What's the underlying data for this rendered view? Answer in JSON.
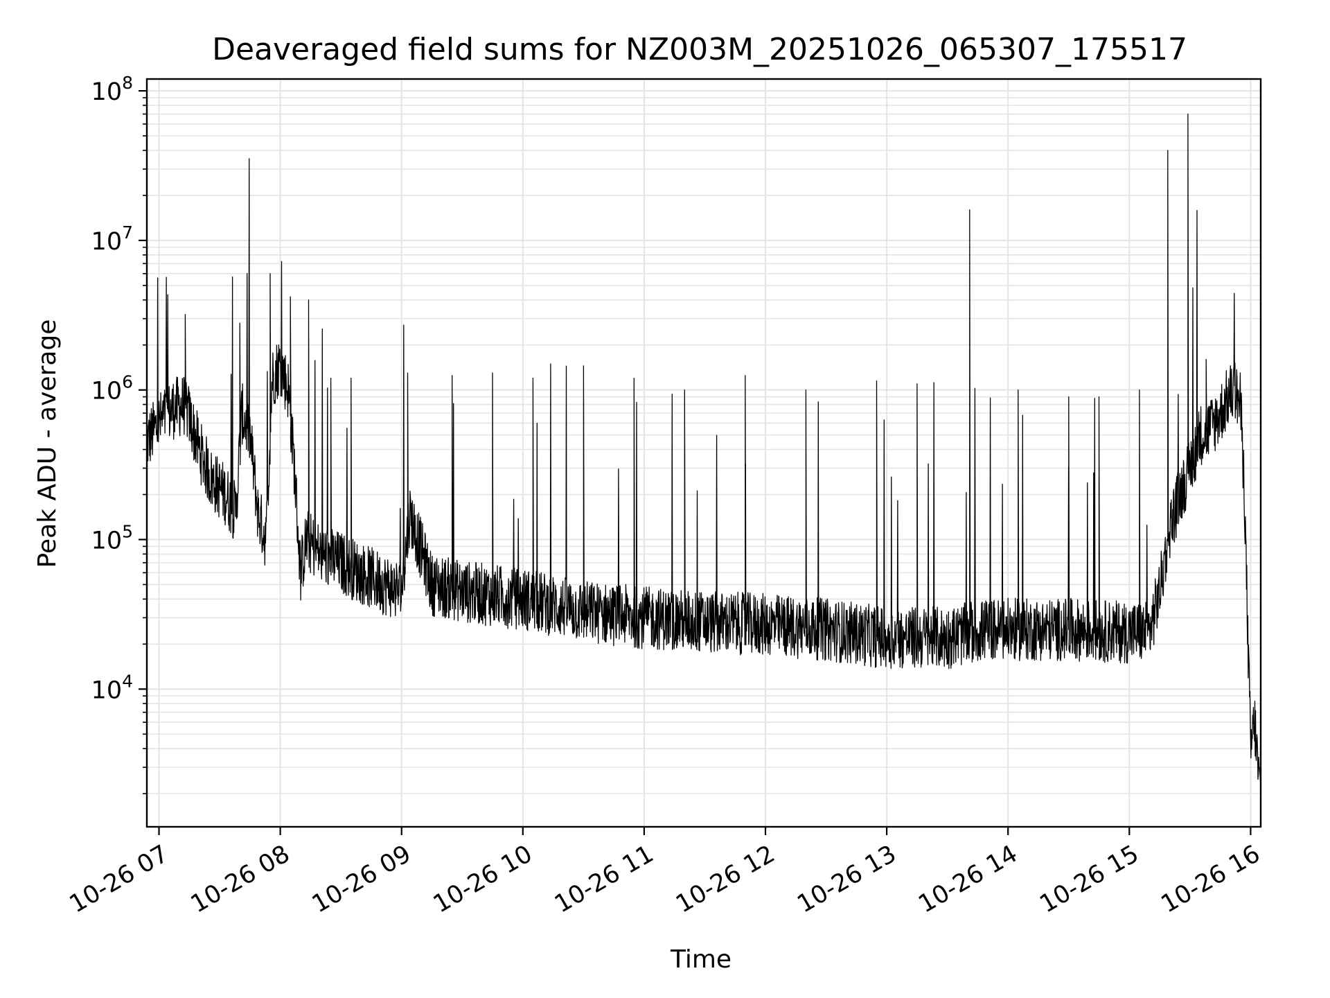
{
  "chart_data": {
    "type": "line",
    "title": "Deaveraged field sums for NZ003M_20251026_065307_175517",
    "xlabel": "Time",
    "ylabel": "Peak ADU - average",
    "x_scale": "time",
    "y_scale": "log",
    "xlim": [
      "2025-10-26 06:54",
      "2025-10-26 16:05"
    ],
    "ylim": [
      1200,
      120000000
    ],
    "grid": "both, major and minor",
    "legend": "none",
    "line_color": "#000000",
    "x_ticks": [
      {
        "value": "2025-10-26 07:00",
        "label": "10-26 07"
      },
      {
        "value": "2025-10-26 08:00",
        "label": "10-26 08"
      },
      {
        "value": "2025-10-26 09:00",
        "label": "10-26 09"
      },
      {
        "value": "2025-10-26 10:00",
        "label": "10-26 10"
      },
      {
        "value": "2025-10-26 11:00",
        "label": "10-26 11"
      },
      {
        "value": "2025-10-26 12:00",
        "label": "10-26 12"
      },
      {
        "value": "2025-10-26 13:00",
        "label": "10-26 13"
      },
      {
        "value": "2025-10-26 14:00",
        "label": "10-26 14"
      },
      {
        "value": "2025-10-26 15:00",
        "label": "10-26 15"
      },
      {
        "value": "2025-10-26 16:00",
        "label": "10-26 16"
      }
    ],
    "y_ticks": [
      {
        "value": 10000,
        "base": "10",
        "exp": "4"
      },
      {
        "value": 100000,
        "base": "10",
        "exp": "5"
      },
      {
        "value": 1000000,
        "base": "10",
        "exp": "6"
      },
      {
        "value": 10000000,
        "base": "10",
        "exp": "7"
      },
      {
        "value": 100000000,
        "base": "10",
        "exp": "8"
      }
    ],
    "series": [
      {
        "x": [
          "2025-10-26 06:54",
          "2025-10-26 07:00",
          "2025-10-26 07:07",
          "2025-10-26 07:13",
          "2025-10-26 07:16",
          "2025-10-26 07:20",
          "2025-10-26 07:26",
          "2025-10-26 07:33",
          "2025-10-26 07:38",
          "2025-10-26 07:41",
          "2025-10-26 07:45",
          "2025-10-26 07:49",
          "2025-10-26 07:53",
          "2025-10-26 07:56",
          "2025-10-26 08:00",
          "2025-10-26 08:04",
          "2025-10-26 08:07",
          "2025-10-26 08:10",
          "2025-10-26 08:13",
          "2025-10-26 08:20",
          "2025-10-26 08:30",
          "2025-10-26 08:45",
          "2025-10-26 09:00",
          "2025-10-26 09:04",
          "2025-10-26 09:15",
          "2025-10-26 09:30",
          "2025-10-26 10:00",
          "2025-10-26 10:30",
          "2025-10-26 11:00",
          "2025-10-26 11:30",
          "2025-10-26 12:00",
          "2025-10-26 12:30",
          "2025-10-26 13:00",
          "2025-10-26 13:30",
          "2025-10-26 13:43",
          "2025-10-26 13:50",
          "2025-10-26 14:00",
          "2025-10-26 14:30",
          "2025-10-26 15:00",
          "2025-10-26 15:10",
          "2025-10-26 15:15",
          "2025-10-26 15:20",
          "2025-10-26 15:25",
          "2025-10-26 15:30",
          "2025-10-26 15:35",
          "2025-10-26 15:40",
          "2025-10-26 15:45",
          "2025-10-26 15:49",
          "2025-10-26 15:52",
          "2025-10-26 15:55",
          "2025-10-26 15:57",
          "2025-10-26 15:58",
          "2025-10-26 16:00",
          "2025-10-26 16:02",
          "2025-10-26 16:04",
          "2025-10-26 16:05"
        ],
        "y": [
          450000,
          600000,
          750000,
          800000,
          600000,
          400000,
          250000,
          200000,
          150000,
          700000,
          500000,
          150000,
          100000,
          1200000,
          1500000,
          1000000,
          300000,
          60000,
          100000,
          80000,
          70000,
          55000,
          45000,
          150000,
          50000,
          45000,
          40000,
          33000,
          30000,
          28000,
          27000,
          25000,
          22000,
          22000,
          24000,
          25000,
          25000,
          25000,
          24000,
          24000,
          45000,
          120000,
          200000,
          300000,
          500000,
          550000,
          700000,
          900000,
          1000000,
          800000,
          200000,
          50000,
          4000,
          6000,
          2500,
          2000
        ]
      }
    ],
    "spikes": [
      {
        "x": "2025-10-26 07:13",
        "y": 3200000
      },
      {
        "x": "2025-10-26 07:40",
        "y": 2800000
      },
      {
        "x": "2025-10-26 07:55",
        "y": 6000000
      },
      {
        "x": "2025-10-26 08:05",
        "y": 4200000
      },
      {
        "x": "2025-10-26 08:14",
        "y": 4000000
      },
      {
        "x": "2025-10-26 08:25",
        "y": 1200000
      },
      {
        "x": "2025-10-26 08:35",
        "y": 1200000
      },
      {
        "x": "2025-10-26 09:03",
        "y": 1300000
      },
      {
        "x": "2025-10-26 09:25",
        "y": 1250000
      },
      {
        "x": "2025-10-26 09:45",
        "y": 1300000
      },
      {
        "x": "2025-10-26 10:05",
        "y": 1200000
      },
      {
        "x": "2025-10-26 10:30",
        "y": 1450000
      },
      {
        "x": "2025-10-26 10:55",
        "y": 1200000
      },
      {
        "x": "2025-10-26 11:20",
        "y": 1000000
      },
      {
        "x": "2025-10-26 11:50",
        "y": 1250000
      },
      {
        "x": "2025-10-26 12:20",
        "y": 1000000
      },
      {
        "x": "2025-10-26 12:55",
        "y": 1150000
      },
      {
        "x": "2025-10-26 13:15",
        "y": 1100000
      },
      {
        "x": "2025-10-26 13:41",
        "y": 16000000
      },
      {
        "x": "2025-10-26 14:05",
        "y": 1000000
      },
      {
        "x": "2025-10-26 14:30",
        "y": 900000
      },
      {
        "x": "2025-10-26 14:45",
        "y": 900000
      },
      {
        "x": "2025-10-26 15:05",
        "y": 1000000
      },
      {
        "x": "2025-10-26 15:19",
        "y": 40000000
      },
      {
        "x": "2025-10-26 15:29",
        "y": 70000000
      },
      {
        "x": "2025-10-26 15:38",
        "y": 1600000
      }
    ]
  }
}
